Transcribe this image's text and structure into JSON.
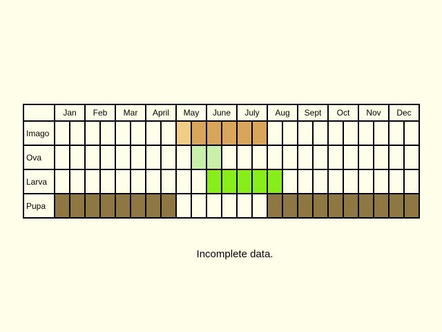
{
  "months": [
    "Jan",
    "Feb",
    "Mar",
    "April",
    "May",
    "June",
    "July",
    "Aug",
    "Sept",
    "Oct",
    "Nov",
    "Dec"
  ],
  "stages": [
    {
      "label": "Imago",
      "periods": [
        "",
        "",
        "",
        "",
        "",
        "",
        "",
        "",
        "light-orange",
        "orange",
        "orange",
        "orange",
        "orange",
        "orange",
        "",
        "",
        "",
        "",
        "",
        "",
        "",
        "",
        "",
        ""
      ]
    },
    {
      "label": "Ova",
      "periods": [
        "",
        "",
        "",
        "",
        "",
        "",
        "",
        "",
        "",
        "light-green",
        "light-green",
        "",
        "",
        "",
        "",
        "",
        "",
        "",
        "",
        "",
        "",
        "",
        "",
        ""
      ]
    },
    {
      "label": "Larva",
      "periods": [
        "",
        "",
        "",
        "",
        "",
        "",
        "",
        "",
        "",
        "",
        "green",
        "green",
        "green",
        "green",
        "green",
        "",
        "",
        "",
        "",
        "",
        "",
        "",
        "",
        ""
      ]
    },
    {
      "label": "Pupa",
      "periods": [
        "brown",
        "brown",
        "brown",
        "brown",
        "brown",
        "brown",
        "brown",
        "brown",
        "",
        "",
        "",
        "",
        "",
        "",
        "brown",
        "brown",
        "brown",
        "brown",
        "brown",
        "brown",
        "brown",
        "brown",
        "brown",
        "brown"
      ]
    }
  ],
  "colors": {
    "light-orange": "#f0cc84",
    "orange": "#d8a55a",
    "light-green": "#c8f0a8",
    "green": "#88ee1a",
    "brown": "#8e7743"
  },
  "caption": "Incomplete data."
}
